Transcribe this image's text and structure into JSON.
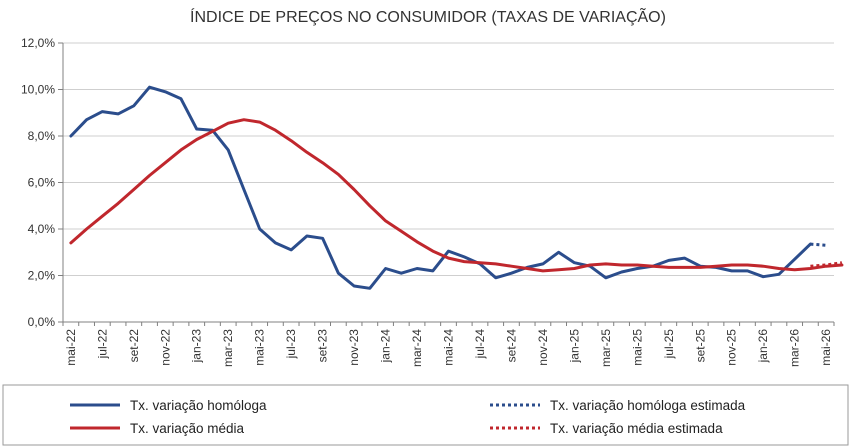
{
  "chart_data": {
    "type": "line",
    "title": "ÍNDICE DE PREÇOS NO CONSUMIDOR (TAXAS DE VARIAÇÃO)",
    "xlabel": "",
    "ylabel": "",
    "ylim": [
      0,
      12
    ],
    "yticks": [
      "0,0%",
      "2,0%",
      "4,0%",
      "6,0%",
      "8,0%",
      "10,0%",
      "12,0%"
    ],
    "x_labels": [
      "mai-22",
      "jul-22",
      "set-22",
      "nov-22",
      "jan-23",
      "mar-23",
      "mai-23",
      "jul-23",
      "set-23",
      "nov-23",
      "jan-24",
      "mar-24",
      "mai-24",
      "jul-24",
      "set-24",
      "nov-24",
      "jan-25",
      "mar-25",
      "mai-25",
      "jul-25",
      "set-25",
      "nov-25",
      "jan-26",
      "mar-26",
      "mai-26"
    ],
    "grid": true,
    "legend_position": "bottom",
    "series": [
      {
        "name": "Tx. variação homóloga",
        "color": "#2B4D8C",
        "style": "solid",
        "x_start": 0,
        "values": [
          8.0,
          8.7,
          9.05,
          8.95,
          9.3,
          10.1,
          9.9,
          9.6,
          8.3,
          8.25,
          7.4,
          5.7,
          4.0,
          3.4,
          3.1,
          3.7,
          3.6,
          2.1,
          1.55,
          1.45,
          2.3,
          2.1,
          2.3,
          2.2,
          3.05,
          2.8,
          2.5,
          1.9,
          2.1,
          2.35,
          2.5,
          3.0,
          2.55,
          2.4,
          1.9,
          2.15,
          2.3,
          2.4,
          2.65,
          2.75,
          2.4,
          2.35,
          2.2,
          2.2,
          1.95,
          2.05,
          2.7,
          3.35
        ]
      },
      {
        "name": "Tx. variação homóloga estimada",
        "color": "#2B4D8C",
        "style": "dotted",
        "x_start": 47,
        "values": [
          3.35,
          3.3
        ]
      },
      {
        "name": "Tx. variação média",
        "color": "#C0272D",
        "style": "solid",
        "x_start": 0,
        "values": [
          3.4,
          4.0,
          4.55,
          5.1,
          5.7,
          6.3,
          6.85,
          7.4,
          7.85,
          8.2,
          8.55,
          8.7,
          8.6,
          8.25,
          7.8,
          7.3,
          6.85,
          6.35,
          5.7,
          5.0,
          4.35,
          3.9,
          3.45,
          3.05,
          2.75,
          2.6,
          2.55,
          2.5,
          2.4,
          2.3,
          2.2,
          2.25,
          2.3,
          2.45,
          2.5,
          2.45,
          2.45,
          2.4,
          2.35,
          2.35,
          2.35,
          2.4,
          2.45,
          2.45,
          2.4,
          2.3,
          2.25,
          2.3,
          2.4,
          2.45
        ]
      },
      {
        "name": "Tx. variação média  estimada",
        "color": "#C0272D",
        "style": "dotted",
        "x_start": 47,
        "values": [
          2.4,
          2.45,
          2.55
        ]
      }
    ]
  }
}
